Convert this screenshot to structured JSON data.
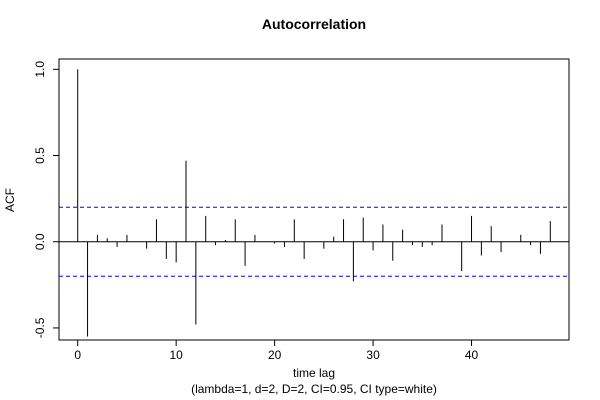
{
  "chart_data": {
    "type": "bar",
    "title": "Autocorrelation",
    "xlabel": "time lag",
    "subtitle": "(lambda=1, d=2, D=2, CI=0.95, CI type=white)",
    "ylabel": "ACF",
    "xlim": [
      -1.9,
      49.9
    ],
    "ylim": [
      -0.57,
      1.06
    ],
    "x_ticks": [
      0,
      10,
      20,
      30,
      40
    ],
    "y_ticks": [
      -0.5,
      0.0,
      0.5,
      1.0
    ],
    "y_tick_labels": [
      "-0.5",
      "0.0",
      "0.5",
      "1.0"
    ],
    "ci": [
      0.2,
      -0.2
    ],
    "ci_color": "#0000ff",
    "grid": false,
    "lags": [
      0,
      1,
      2,
      3,
      4,
      5,
      6,
      7,
      8,
      9,
      10,
      11,
      12,
      13,
      14,
      15,
      16,
      17,
      18,
      19,
      20,
      21,
      22,
      23,
      24,
      25,
      26,
      27,
      28,
      29,
      30,
      31,
      32,
      33,
      34,
      35,
      36,
      37,
      38,
      39,
      40,
      41,
      42,
      43,
      44,
      45,
      46,
      47,
      48
    ],
    "values": [
      1.0,
      -0.55,
      0.04,
      0.02,
      -0.03,
      0.04,
      0.0,
      -0.04,
      0.13,
      -0.1,
      -0.12,
      0.47,
      -0.48,
      0.15,
      -0.02,
      0.01,
      0.13,
      -0.14,
      0.04,
      0.0,
      -0.01,
      -0.03,
      0.13,
      -0.1,
      0.0,
      -0.04,
      0.03,
      0.13,
      -0.23,
      0.14,
      -0.05,
      0.1,
      -0.11,
      0.07,
      -0.02,
      -0.03,
      -0.02,
      0.1,
      0.0,
      -0.17,
      0.15,
      -0.08,
      0.09,
      -0.06,
      0.0,
      0.04,
      -0.02,
      -0.07,
      0.12
    ]
  }
}
